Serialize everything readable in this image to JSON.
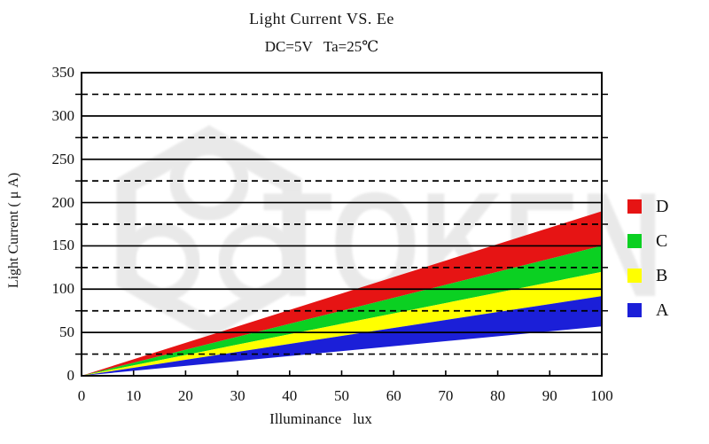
{
  "page": {
    "background": "#ffffff"
  },
  "chart_data": {
    "type": "area",
    "title": "Light Current VS. Ee",
    "subtitle": "DC=5V   Ta=25℃",
    "xlabel": "Illuminance   lux",
    "ylabel": "Light Current ( μ A)",
    "xlim": [
      0,
      100
    ],
    "ylim": [
      0,
      350
    ],
    "x_ticks": [
      0,
      10,
      20,
      30,
      40,
      50,
      60,
      70,
      80,
      90,
      100
    ],
    "y_ticks": [
      0,
      50,
      100,
      150,
      200,
      250,
      300,
      350
    ],
    "y_gridlines_solid": [
      50,
      100,
      150,
      200,
      250,
      300
    ],
    "y_gridlines_dashed": [
      25,
      75,
      125,
      175,
      225,
      275,
      325
    ],
    "grid": "horizontal-only",
    "legend_position": "right-outside",
    "axis_color": "#000000",
    "series": [
      {
        "name": "D",
        "color": "#e61414",
        "x": [
          0,
          100
        ],
        "lower": [
          0,
          150
        ],
        "upper": [
          0,
          190
        ]
      },
      {
        "name": "C",
        "color": "#0bd022",
        "x": [
          0,
          100
        ],
        "lower": [
          0,
          120
        ],
        "upper": [
          0,
          150
        ]
      },
      {
        "name": "B",
        "color": "#ffff00",
        "x": [
          0,
          100
        ],
        "lower": [
          0,
          92
        ],
        "upper": [
          0,
          120
        ]
      },
      {
        "name": "A",
        "color": "#1b1fd8",
        "x": [
          0,
          100
        ],
        "lower": [
          0,
          57
        ],
        "upper": [
          0,
          92
        ]
      }
    ],
    "legend": [
      {
        "label": "D",
        "color": "#e61414"
      },
      {
        "label": "C",
        "color": "#0bd022"
      },
      {
        "label": "B",
        "color": "#ffff00"
      },
      {
        "label": "A",
        "color": "#1b1fd8"
      }
    ]
  },
  "watermark": {
    "text": "TOKEN",
    "color": "#e9e9e9"
  }
}
